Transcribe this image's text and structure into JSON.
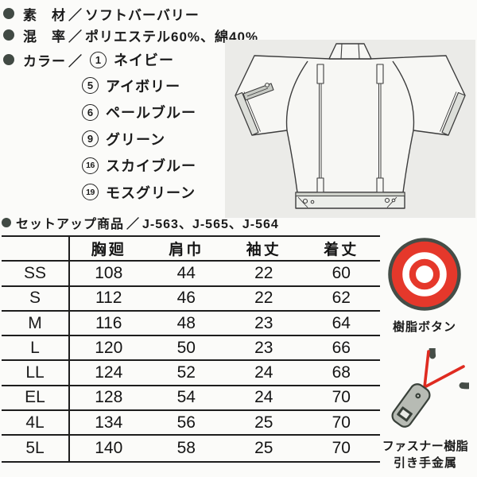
{
  "specs": {
    "material_label": "素　材",
    "material_value": "ソフトバーバリー",
    "blend_label": "混　率",
    "blend_value": "ポリエステル60%、綿40%",
    "color_label": "カラー",
    "separator": "／",
    "colors": [
      {
        "num": "1",
        "name": "ネイビー"
      },
      {
        "num": "5",
        "name": "アイボリー"
      },
      {
        "num": "6",
        "name": "ペールブルー"
      },
      {
        "num": "9",
        "name": "グリーン"
      },
      {
        "num": "16",
        "name": "スカイブルー"
      },
      {
        "num": "19",
        "name": "モスグリーン"
      }
    ],
    "setup_label": "セットアップ商品",
    "setup_value": "J-563、J-565、J-564"
  },
  "size_table": {
    "columns": [
      "胸廻",
      "肩巾",
      "袖丈",
      "着丈"
    ],
    "rows": [
      {
        "size": "SS",
        "values": [
          108,
          44,
          22,
          60
        ]
      },
      {
        "size": "S",
        "values": [
          112,
          46,
          22,
          62
        ]
      },
      {
        "size": "M",
        "values": [
          116,
          48,
          23,
          64
        ]
      },
      {
        "size": "L",
        "values": [
          120,
          50,
          23,
          66
        ]
      },
      {
        "size": "LL",
        "values": [
          124,
          52,
          24,
          68
        ]
      },
      {
        "size": "EL",
        "values": [
          128,
          54,
          24,
          70
        ]
      },
      {
        "size": "4L",
        "values": [
          134,
          56,
          25,
          70
        ]
      },
      {
        "size": "5L",
        "values": [
          140,
          58,
          25,
          70
        ]
      }
    ]
  },
  "side_icons": {
    "button_label": "樹脂ボタン",
    "fastener_label_line1": "ファスナー樹脂",
    "fastener_label_line2": "引き手金属",
    "button_red": "#e5382b",
    "ring_dark": "#454d47"
  }
}
